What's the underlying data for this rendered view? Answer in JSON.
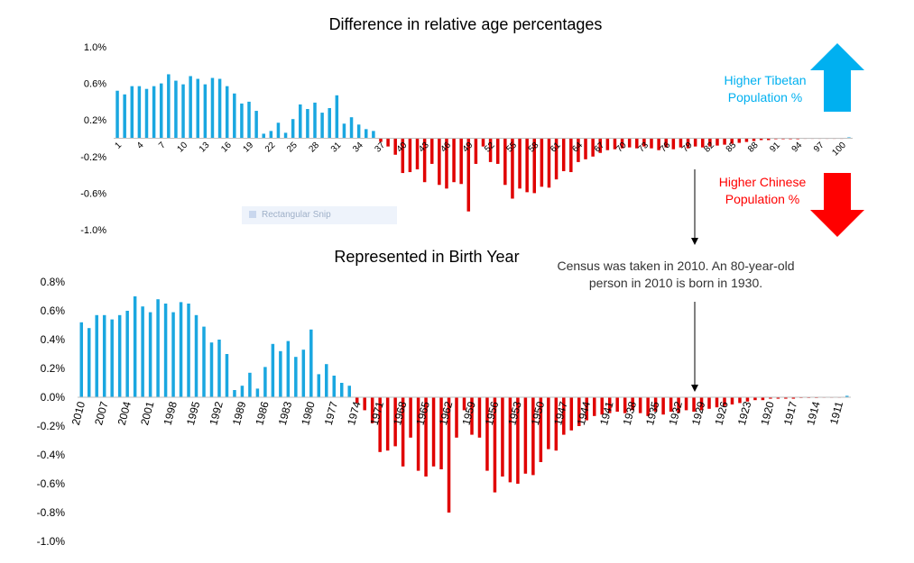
{
  "colors": {
    "positive": "#1aa7e0",
    "negative": "#e00000",
    "tibetan_text": "#00b0f0",
    "chinese_text": "#ff0000",
    "arrow_up": "#00b0f0",
    "arrow_down": "#ff0000"
  },
  "top_legend": {
    "tibetan_line1": "Higher Tibetan",
    "tibetan_line2": "Population %",
    "chinese_line1": "Higher  Chinese",
    "chinese_line2": "Population %"
  },
  "annotation": {
    "line1": "Census was taken in 2010. An 80-year-old",
    "line2": "person in 2010 is born in 1930."
  },
  "overlay": {
    "label": "Rectangular Snip"
  },
  "chart_data": [
    {
      "type": "bar",
      "title": "Difference in relative age percentages",
      "yticks": [
        "1.0%",
        "0.6%",
        "0.2%",
        "-0.2%",
        "-0.6%",
        "-1.0%"
      ],
      "ylim": [
        -1.0,
        1.0
      ],
      "categories": [
        "1",
        "2",
        "3",
        "4",
        "5",
        "6",
        "7",
        "8",
        "9",
        "10",
        "11",
        "12",
        "13",
        "14",
        "15",
        "16",
        "17",
        "18",
        "19",
        "20",
        "21",
        "22",
        "23",
        "24",
        "25",
        "26",
        "27",
        "28",
        "29",
        "30",
        "31",
        "32",
        "33",
        "34",
        "35",
        "36",
        "37",
        "38",
        "39",
        "40",
        "41",
        "42",
        "43",
        "44",
        "45",
        "46",
        "47",
        "48",
        "49",
        "50",
        "51",
        "52",
        "53",
        "54",
        "55",
        "56",
        "57",
        "58",
        "59",
        "60",
        "61",
        "62",
        "63",
        "64",
        "65",
        "66",
        "67",
        "68",
        "69",
        "70",
        "71",
        "72",
        "73",
        "74",
        "75",
        "76",
        "77",
        "78",
        "79",
        "80",
        "81",
        "82",
        "83",
        "84",
        "85",
        "86",
        "87",
        "88",
        "89",
        "90",
        "91",
        "92",
        "93",
        "94",
        "95",
        "96",
        "97",
        "98",
        "99",
        "100",
        "101"
      ],
      "category_label_step": 3,
      "values": [
        0.52,
        0.48,
        0.57,
        0.57,
        0.54,
        0.57,
        0.6,
        0.7,
        0.63,
        0.59,
        0.68,
        0.65,
        0.59,
        0.66,
        0.65,
        0.57,
        0.49,
        0.38,
        0.4,
        0.3,
        0.05,
        0.08,
        0.17,
        0.06,
        0.21,
        0.37,
        0.32,
        0.39,
        0.28,
        0.33,
        0.47,
        0.16,
        0.23,
        0.15,
        0.1,
        0.08,
        -0.04,
        -0.09,
        -0.18,
        -0.38,
        -0.37,
        -0.34,
        -0.48,
        -0.28,
        -0.51,
        -0.55,
        -0.48,
        -0.5,
        -0.8,
        -0.28,
        -0.09,
        -0.26,
        -0.28,
        -0.51,
        -0.66,
        -0.55,
        -0.59,
        -0.6,
        -0.53,
        -0.54,
        -0.45,
        -0.36,
        -0.37,
        -0.26,
        -0.23,
        -0.2,
        -0.16,
        -0.13,
        -0.12,
        -0.11,
        -0.1,
        -0.11,
        -0.09,
        -0.11,
        -0.13,
        -0.1,
        -0.12,
        -0.1,
        -0.11,
        -0.09,
        -0.1,
        -0.09,
        -0.08,
        -0.07,
        -0.06,
        -0.05,
        -0.04,
        -0.03,
        -0.02,
        -0.02,
        -0.01,
        -0.01,
        -0.01,
        -0.01,
        -0.005,
        -0.005,
        -0.005,
        -0.003,
        -0.002,
        -0.001,
        0.01
      ]
    },
    {
      "type": "bar",
      "title": "Represented in Birth Year",
      "yticks": [
        "0.8%",
        "0.6%",
        "0.4%",
        "0.2%",
        "0.0%",
        "-0.2%",
        "-0.4%",
        "-0.6%",
        "-0.8%",
        "-1.0%"
      ],
      "ylim": [
        -1.0,
        0.8
      ],
      "categories": [
        "2010",
        "2009",
        "2008",
        "2007",
        "2006",
        "2005",
        "2004",
        "2003",
        "2002",
        "2001",
        "2000",
        "1999",
        "1998",
        "1997",
        "1996",
        "1995",
        "1994",
        "1993",
        "1992",
        "1991",
        "1990",
        "1989",
        "1988",
        "1987",
        "1986",
        "1985",
        "1984",
        "1983",
        "1982",
        "1981",
        "1980",
        "1979",
        "1978",
        "1977",
        "1976",
        "1975",
        "1974",
        "1973",
        "1972",
        "1971",
        "1970",
        "1969",
        "1968",
        "1967",
        "1966",
        "1965",
        "1964",
        "1963",
        "1962",
        "1961",
        "1960",
        "1959",
        "1958",
        "1957",
        "1956",
        "1955",
        "1954",
        "1953",
        "1952",
        "1951",
        "1950",
        "1949",
        "1948",
        "1947",
        "1946",
        "1945",
        "1944",
        "1943",
        "1942",
        "1941",
        "1940",
        "1939",
        "1938",
        "1937",
        "1936",
        "1935",
        "1934",
        "1933",
        "1932",
        "1931",
        "1930",
        "1929",
        "1928",
        "1927",
        "1926",
        "1925",
        "1924",
        "1923",
        "1922",
        "1921",
        "1920",
        "1919",
        "1918",
        "1917",
        "1916",
        "1915",
        "1914",
        "1913",
        "1912",
        "1911",
        "1910"
      ],
      "category_label_step": 3,
      "values": [
        0.52,
        0.48,
        0.57,
        0.57,
        0.54,
        0.57,
        0.6,
        0.7,
        0.63,
        0.59,
        0.68,
        0.65,
        0.59,
        0.66,
        0.65,
        0.57,
        0.49,
        0.38,
        0.4,
        0.3,
        0.05,
        0.08,
        0.17,
        0.06,
        0.21,
        0.37,
        0.32,
        0.39,
        0.28,
        0.33,
        0.47,
        0.16,
        0.23,
        0.15,
        0.1,
        0.08,
        -0.04,
        -0.09,
        -0.18,
        -0.38,
        -0.37,
        -0.34,
        -0.48,
        -0.28,
        -0.51,
        -0.55,
        -0.48,
        -0.5,
        -0.8,
        -0.28,
        -0.09,
        -0.26,
        -0.28,
        -0.51,
        -0.66,
        -0.55,
        -0.59,
        -0.6,
        -0.53,
        -0.54,
        -0.45,
        -0.36,
        -0.37,
        -0.26,
        -0.23,
        -0.2,
        -0.16,
        -0.13,
        -0.12,
        -0.11,
        -0.1,
        -0.11,
        -0.09,
        -0.11,
        -0.13,
        -0.1,
        -0.12,
        -0.1,
        -0.11,
        -0.09,
        -0.1,
        -0.09,
        -0.08,
        -0.07,
        -0.06,
        -0.05,
        -0.04,
        -0.03,
        -0.02,
        -0.02,
        -0.01,
        -0.01,
        -0.01,
        -0.01,
        -0.005,
        -0.005,
        -0.005,
        -0.003,
        -0.002,
        -0.001,
        0.01
      ]
    }
  ]
}
